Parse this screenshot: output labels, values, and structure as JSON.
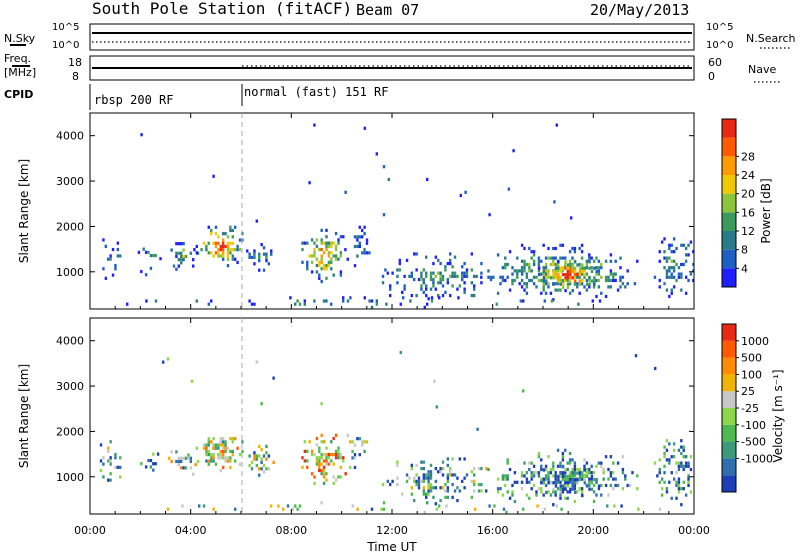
{
  "header": {
    "station": "South Pole Station (fitACF)",
    "beam": "Beam 07",
    "date": "20/May/2013"
  },
  "nsky_panel": {
    "left_label": "N.Sky",
    "right_label": "N.Search",
    "left_ticks": [
      "10^5",
      "10^0"
    ],
    "right_ticks": [
      "10^5",
      "10^0"
    ]
  },
  "freq_panel": {
    "left_label_line1": "Freq.",
    "left_label_line2": "[MHz]",
    "right_label": "Nave",
    "left_ticks": [
      "18",
      "8"
    ],
    "right_ticks": [
      "60",
      "0"
    ]
  },
  "cpid_panel": {
    "label": "CPID",
    "modes": [
      {
        "label": "rbsp 200 RF",
        "start_hour": 0,
        "end_hour": 6
      },
      {
        "label": "normal (fast) 151 RF",
        "start_hour": 6,
        "end_hour": 24
      }
    ]
  },
  "chart_data": [
    {
      "type": "heatmap",
      "title": "Power",
      "ylabel": "Slant Range [km]",
      "xlabel": "Time UT",
      "ylim": [
        180,
        4500
      ],
      "xlim": [
        0,
        24
      ],
      "y_ticks": [
        "1000",
        "2000",
        "3000",
        "4000"
      ],
      "x_ticks": [
        "00:00",
        "04:00",
        "08:00",
        "12:00",
        "16:00",
        "20:00",
        "00:00"
      ],
      "colorbar": {
        "label": "Power [dB]",
        "ticks": [
          "4",
          "8",
          "12",
          "16",
          "20",
          "24",
          "28"
        ],
        "colors": [
          "#1f1fff",
          "#1e5fc4",
          "#2a7a8a",
          "#3c9a5a",
          "#8cc43c",
          "#f0c800",
          "#ff9a00",
          "#ff5a00",
          "#e82a14"
        ]
      }
    },
    {
      "type": "heatmap",
      "title": "Velocity",
      "ylabel": "Slant Range [km]",
      "xlabel": "Time UT",
      "ylim": [
        180,
        4500
      ],
      "xlim": [
        0,
        24
      ],
      "y_ticks": [
        "1000",
        "2000",
        "3000",
        "4000"
      ],
      "x_ticks": [
        "00:00",
        "04:00",
        "08:00",
        "12:00",
        "16:00",
        "20:00",
        "00:00"
      ],
      "colorbar": {
        "label": "Velocity [m s⁻¹]",
        "ticks": [
          "1000",
          "500",
          "100",
          "25",
          "-25",
          "-100",
          "-500",
          "-1000"
        ],
        "colors": [
          "#1c3fb8",
          "#2f6fae",
          "#3a9a7a",
          "#4fb84f",
          "#8ed64a",
          "#c8c8c8",
          "#f0b400",
          "#ff8c00",
          "#ff5a00",
          "#e82a14"
        ]
      }
    }
  ],
  "scatter_regions": [
    {
      "t0": 0.2,
      "t1": 1.3,
      "r0": 750,
      "r1": 1800,
      "density": 0.35,
      "pbias": 0.15,
      "vbias": 0.3
    },
    {
      "t0": 1.8,
      "t1": 2.8,
      "r0": 900,
      "r1": 1550,
      "density": 0.35,
      "pbias": 0.35,
      "vbias": 0.3
    },
    {
      "t0": 3.1,
      "t1": 4.3,
      "r0": 950,
      "r1": 1700,
      "density": 0.45,
      "pbias": 0.35,
      "vbias": 0.4
    },
    {
      "t0": 4.1,
      "t1": 6.2,
      "r0": 1100,
      "r1": 2000,
      "density": 0.6,
      "pbias": 0.75,
      "vbias": 0.5
    },
    {
      "t0": 6.2,
      "t1": 7.3,
      "r0": 1000,
      "r1": 1700,
      "density": 0.45,
      "pbias": 0.2,
      "vbias": 0.4
    },
    {
      "t0": 8.3,
      "t1": 10.2,
      "r0": 750,
      "r1": 1900,
      "density": 0.55,
      "pbias": 0.65,
      "vbias": 0.6
    },
    {
      "t0": 10.1,
      "t1": 11.1,
      "r0": 1100,
      "r1": 2100,
      "density": 0.35,
      "pbias": 0.2,
      "vbias": 0.3
    },
    {
      "t0": 11.5,
      "t1": 16.0,
      "r0": 300,
      "r1": 1400,
      "density": 0.4,
      "pbias": 0.3,
      "vbias": 0.3
    },
    {
      "t0": 15.5,
      "t1": 21.7,
      "r0": 350,
      "r1": 1550,
      "density": 0.55,
      "pbias": 0.45,
      "vbias": 0.2
    },
    {
      "t0": 17.8,
      "t1": 20.2,
      "r0": 550,
      "r1": 1250,
      "density": 0.7,
      "pbias": 0.85,
      "vbias": 0.2
    },
    {
      "t0": 22.4,
      "t1": 24.0,
      "r0": 350,
      "r1": 1800,
      "density": 0.45,
      "pbias": 0.3,
      "vbias": 0.2
    },
    {
      "t0": 0.0,
      "t1": 24.0,
      "r0": 180,
      "r1": 420,
      "density": 0.12,
      "pbias": 0.25,
      "vbias": 0.4
    },
    {
      "t0": 0.0,
      "t1": 24.0,
      "r0": 1800,
      "r1": 4400,
      "density": 0.004,
      "pbias": 0.1,
      "vbias": 0.3
    }
  ]
}
